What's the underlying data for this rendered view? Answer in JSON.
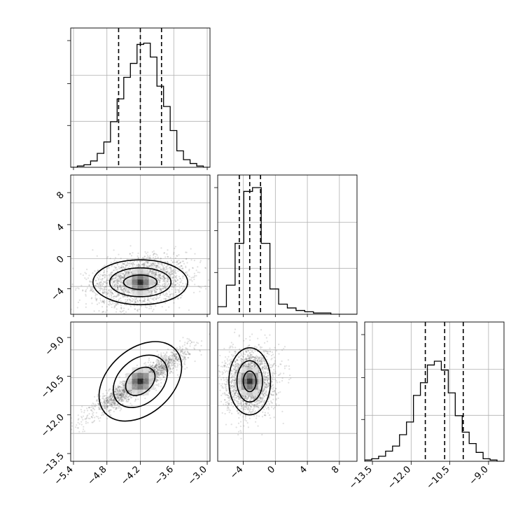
{
  "chart_data": {
    "type": "corner",
    "grid": true,
    "axis_ticks": [
      [
        -5.4,
        -4.8,
        -4.2,
        -3.6,
        -3.0
      ],
      [
        -4,
        0,
        4,
        8
      ],
      [
        -13.5,
        -12.0,
        -10.5,
        -9.0
      ]
    ],
    "axis_tick_labels": [
      [
        "−5.4",
        "−4.8",
        "−4.2",
        "−3.6",
        "−3.0"
      ],
      [
        "−4",
        "0",
        "4",
        "8"
      ],
      [
        "−13.5",
        "−12.0",
        "−10.5",
        "−9.0"
      ]
    ],
    "ranges": [
      [
        -5.45,
        -2.95
      ],
      [
        -7.2,
        10.2
      ],
      [
        -13.8,
        -8.4
      ]
    ],
    "quantiles": [
      [
        -4.59,
        -4.2,
        -3.82
      ],
      [
        -4.5,
        -3.2,
        -1.85
      ],
      [
        -11.45,
        -10.7,
        -9.98
      ]
    ],
    "hist_max_frac": [
      1.0,
      1.0,
      1.0
    ],
    "histograms": [
      [
        0.0,
        0.01,
        0.02,
        0.05,
        0.11,
        0.2,
        0.36,
        0.54,
        0.71,
        0.82,
        0.97,
        0.98,
        0.87,
        0.64,
        0.48,
        0.29,
        0.13,
        0.06,
        0.03,
        0.01,
        0.0
      ],
      [
        0.06,
        0.23,
        0.56,
        0.97,
        1.0,
        0.56,
        0.2,
        0.08,
        0.05,
        0.03,
        0.02,
        0.01,
        0.01,
        0.0,
        0.0,
        0.0
      ],
      [
        0.01,
        0.02,
        0.04,
        0.08,
        0.12,
        0.21,
        0.31,
        0.52,
        0.62,
        0.76,
        0.79,
        0.72,
        0.54,
        0.36,
        0.23,
        0.14,
        0.07,
        0.02,
        0.01,
        0.0
      ]
    ],
    "pairs": [
      {
        "row": 1,
        "col": 0,
        "center": [
          -4.2,
          -3.2
        ],
        "sd": [
          0.42,
          1.55
        ],
        "rho": 0.12,
        "contours": [
          {
            "rx": 0.3,
            "ry": 0.9
          },
          {
            "rx": 0.55,
            "ry": 1.8
          },
          {
            "rx": 0.85,
            "ry": 2.8
          }
        ]
      },
      {
        "row": 2,
        "col": 0,
        "center": [
          -4.2,
          -10.7
        ],
        "sd": [
          0.42,
          0.62
        ],
        "rho": 0.93,
        "contours": [
          {
            "rx": 0.3,
            "ry": 0.45
          },
          {
            "rx": 0.55,
            "ry": 0.85
          },
          {
            "rx": 0.85,
            "ry": 1.25
          }
        ]
      },
      {
        "row": 2,
        "col": 1,
        "center": [
          -3.2,
          -10.7
        ],
        "sd": [
          1.55,
          0.62
        ],
        "rho": 0.08,
        "contours": [
          {
            "rx": 0.8,
            "ry": 0.4
          },
          {
            "rx": 1.6,
            "ry": 0.8
          },
          {
            "rx": 2.6,
            "ry": 1.3
          }
        ]
      }
    ]
  }
}
